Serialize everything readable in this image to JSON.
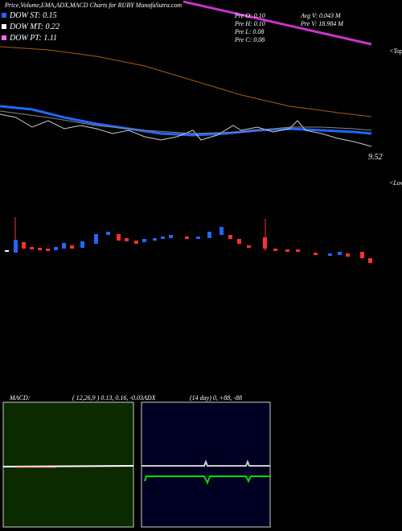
{
  "header": {
    "title": "Price,Volume,EMA,ADX,MACD Charts for RUBY MunafaSutra.com"
  },
  "legend": [
    "DOW ST: 0.15",
    "DOW MT: 0.22",
    "DOW PT: 1.11"
  ],
  "stats": [
    [
      "Pre  O: 0.10",
      "Avg  V: 0.043  M"
    ],
    [
      "Pre  H: 0.10",
      "Pre   V: 18.984  M"
    ],
    [
      "Pre  L: 0.08"
    ],
    [
      "Pre  C: 0.08"
    ]
  ],
  "price_label": "9.52",
  "markers": {
    "tops": "<Tops",
    "lows": "<Lows"
  },
  "macd": {
    "label": "MACD:",
    "params": "( 12,26,9 ) 0.13, 0.16, -0.03"
  },
  "adx": {
    "label": "ADX",
    "params": "(14  day) 0, +88, -88"
  }
}
